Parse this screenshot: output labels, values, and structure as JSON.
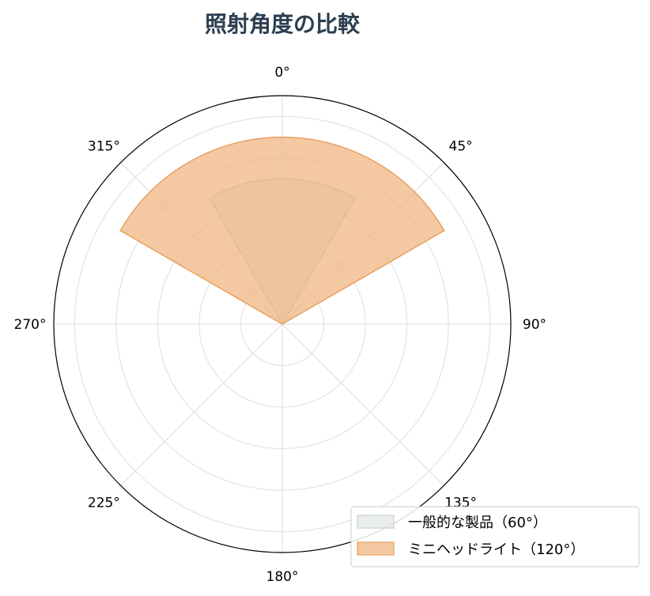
{
  "chart_data": {
    "type": "polar-area",
    "title": "照射角度の比較",
    "theta_direction": "clockwise",
    "theta_zero": "top",
    "theta_ticks": [
      "0°",
      "45°",
      "90°",
      "135°",
      "180°",
      "225°",
      "270°",
      "315°"
    ],
    "r_max": 5.5,
    "r_grid": [
      1,
      2,
      3,
      4,
      5
    ],
    "grid": true,
    "legend_position": "lower-right",
    "series": [
      {
        "name": "一般的な製品（60°）",
        "theta_start": -30,
        "theta_end": 30,
        "r": 3.5,
        "color": "#dde2e3",
        "edge_color": "#c8ced0"
      },
      {
        "name": "ミニヘッドライト（120°）",
        "theta_start": -60,
        "theta_end": 60,
        "r": 4.5,
        "color": "#f0b27a",
        "edge_color": "#e8a060"
      }
    ]
  }
}
